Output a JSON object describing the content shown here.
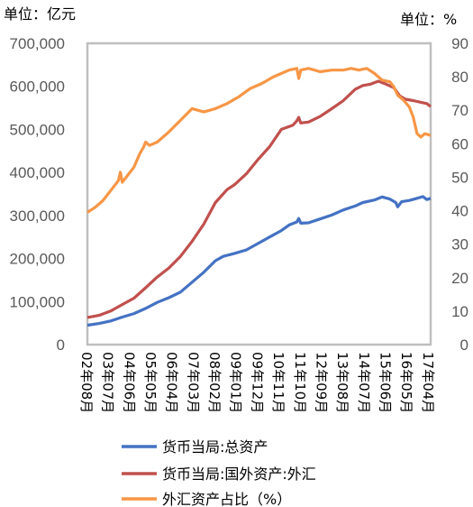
{
  "units": {
    "left": "单位：亿元",
    "right": "单位：%"
  },
  "chart_data": {
    "type": "line",
    "left_axis": {
      "ylim": [
        0,
        700000
      ],
      "ticks": [
        "0",
        "100,000",
        "200,000",
        "300,000",
        "400,000",
        "500,000",
        "600,000",
        "700,000"
      ]
    },
    "right_axis": {
      "ylim": [
        0,
        90
      ],
      "ticks": [
        "0",
        "10",
        "20",
        "30",
        "40",
        "50",
        "60",
        "70",
        "80",
        "90"
      ]
    },
    "x_ticks": [
      "02年08月",
      "03年07月",
      "04年06月",
      "05年05月",
      "06年04月",
      "07年03月",
      "08年02月",
      "09年01月",
      "09年12月",
      "10年11月",
      "11年10月",
      "12年09月",
      "13年08月",
      "14年07月",
      "15年06月",
      "16年05月",
      "17年04月"
    ],
    "x_tick_months": [
      0,
      11,
      22,
      33,
      44,
      55,
      66,
      77,
      88,
      99,
      110,
      121,
      132,
      143,
      154,
      165,
      176
    ],
    "grid": false,
    "legend_position": "bottom",
    "series": [
      {
        "name": "货币当局:总资产",
        "axis": "left",
        "color": "#4472C4",
        "points": [
          [
            0,
            45000
          ],
          [
            6,
            49000
          ],
          [
            12,
            55000
          ],
          [
            18,
            64000
          ],
          [
            24,
            72000
          ],
          [
            30,
            84000
          ],
          [
            36,
            98000
          ],
          [
            42,
            109000
          ],
          [
            48,
            122000
          ],
          [
            54,
            145000
          ],
          [
            60,
            168000
          ],
          [
            66,
            195000
          ],
          [
            70,
            205000
          ],
          [
            76,
            212000
          ],
          [
            82,
            220000
          ],
          [
            88,
            235000
          ],
          [
            94,
            250000
          ],
          [
            100,
            265000
          ],
          [
            104,
            278000
          ],
          [
            108,
            285000
          ],
          [
            109,
            293000
          ],
          [
            110,
            282000
          ],
          [
            114,
            283000
          ],
          [
            120,
            292000
          ],
          [
            126,
            301000
          ],
          [
            132,
            313000
          ],
          [
            138,
            322000
          ],
          [
            142,
            330000
          ],
          [
            148,
            336000
          ],
          [
            152,
            343000
          ],
          [
            156,
            338000
          ],
          [
            159,
            330000
          ],
          [
            160,
            320000
          ],
          [
            162,
            332000
          ],
          [
            166,
            335000
          ],
          [
            170,
            340000
          ],
          [
            173,
            344000
          ],
          [
            175,
            337000
          ],
          [
            177,
            340000
          ]
        ]
      },
      {
        "name": "货币当局:国外资产:外汇",
        "axis": "left",
        "color": "#C0504D",
        "points": [
          [
            0,
            63000
          ],
          [
            6,
            68000
          ],
          [
            12,
            78000
          ],
          [
            18,
            93000
          ],
          [
            24,
            108000
          ],
          [
            30,
            132000
          ],
          [
            36,
            157000
          ],
          [
            42,
            178000
          ],
          [
            48,
            205000
          ],
          [
            54,
            240000
          ],
          [
            60,
            280000
          ],
          [
            66,
            330000
          ],
          [
            72,
            360000
          ],
          [
            76,
            372000
          ],
          [
            82,
            397000
          ],
          [
            88,
            430000
          ],
          [
            94,
            460000
          ],
          [
            100,
            500000
          ],
          [
            106,
            510000
          ],
          [
            108,
            520000
          ],
          [
            109,
            528000
          ],
          [
            110,
            515000
          ],
          [
            114,
            517000
          ],
          [
            120,
            530000
          ],
          [
            126,
            548000
          ],
          [
            132,
            567000
          ],
          [
            138,
            593000
          ],
          [
            142,
            602000
          ],
          [
            146,
            605000
          ],
          [
            150,
            612000
          ],
          [
            154,
            605000
          ],
          [
            158,
            597000
          ],
          [
            161,
            578000
          ],
          [
            164,
            570000
          ],
          [
            168,
            567000
          ],
          [
            172,
            563000
          ],
          [
            175,
            560000
          ],
          [
            177,
            553000
          ]
        ]
      },
      {
        "name": "外汇资产占比（%）",
        "axis": "right",
        "color": "#F79646",
        "points": [
          [
            0,
            39.5
          ],
          [
            4,
            41
          ],
          [
            8,
            43
          ],
          [
            12,
            46
          ],
          [
            16,
            49
          ],
          [
            17,
            51.5
          ],
          [
            18,
            48.5
          ],
          [
            20,
            50
          ],
          [
            24,
            53
          ],
          [
            27,
            57
          ],
          [
            29,
            59
          ],
          [
            30,
            60.5
          ],
          [
            32,
            59.5
          ],
          [
            36,
            60.5
          ],
          [
            42,
            63.5
          ],
          [
            48,
            67
          ],
          [
            54,
            70.5
          ],
          [
            60,
            69.5
          ],
          [
            66,
            70.5
          ],
          [
            72,
            72
          ],
          [
            78,
            74
          ],
          [
            84,
            76.5
          ],
          [
            90,
            78
          ],
          [
            96,
            80
          ],
          [
            100,
            81
          ],
          [
            104,
            82
          ],
          [
            108,
            82.5
          ],
          [
            109,
            79.5
          ],
          [
            110,
            82
          ],
          [
            114,
            82.5
          ],
          [
            120,
            81.5
          ],
          [
            126,
            82
          ],
          [
            132,
            82
          ],
          [
            136,
            82.5
          ],
          [
            140,
            82
          ],
          [
            144,
            82.5
          ],
          [
            148,
            81
          ],
          [
            152,
            79
          ],
          [
            156,
            78.5
          ],
          [
            158,
            77
          ],
          [
            160,
            74.5
          ],
          [
            163,
            73
          ],
          [
            166,
            71
          ],
          [
            168,
            68
          ],
          [
            170,
            63
          ],
          [
            172,
            62
          ],
          [
            174,
            63
          ],
          [
            177,
            62.5
          ]
        ]
      }
    ]
  }
}
